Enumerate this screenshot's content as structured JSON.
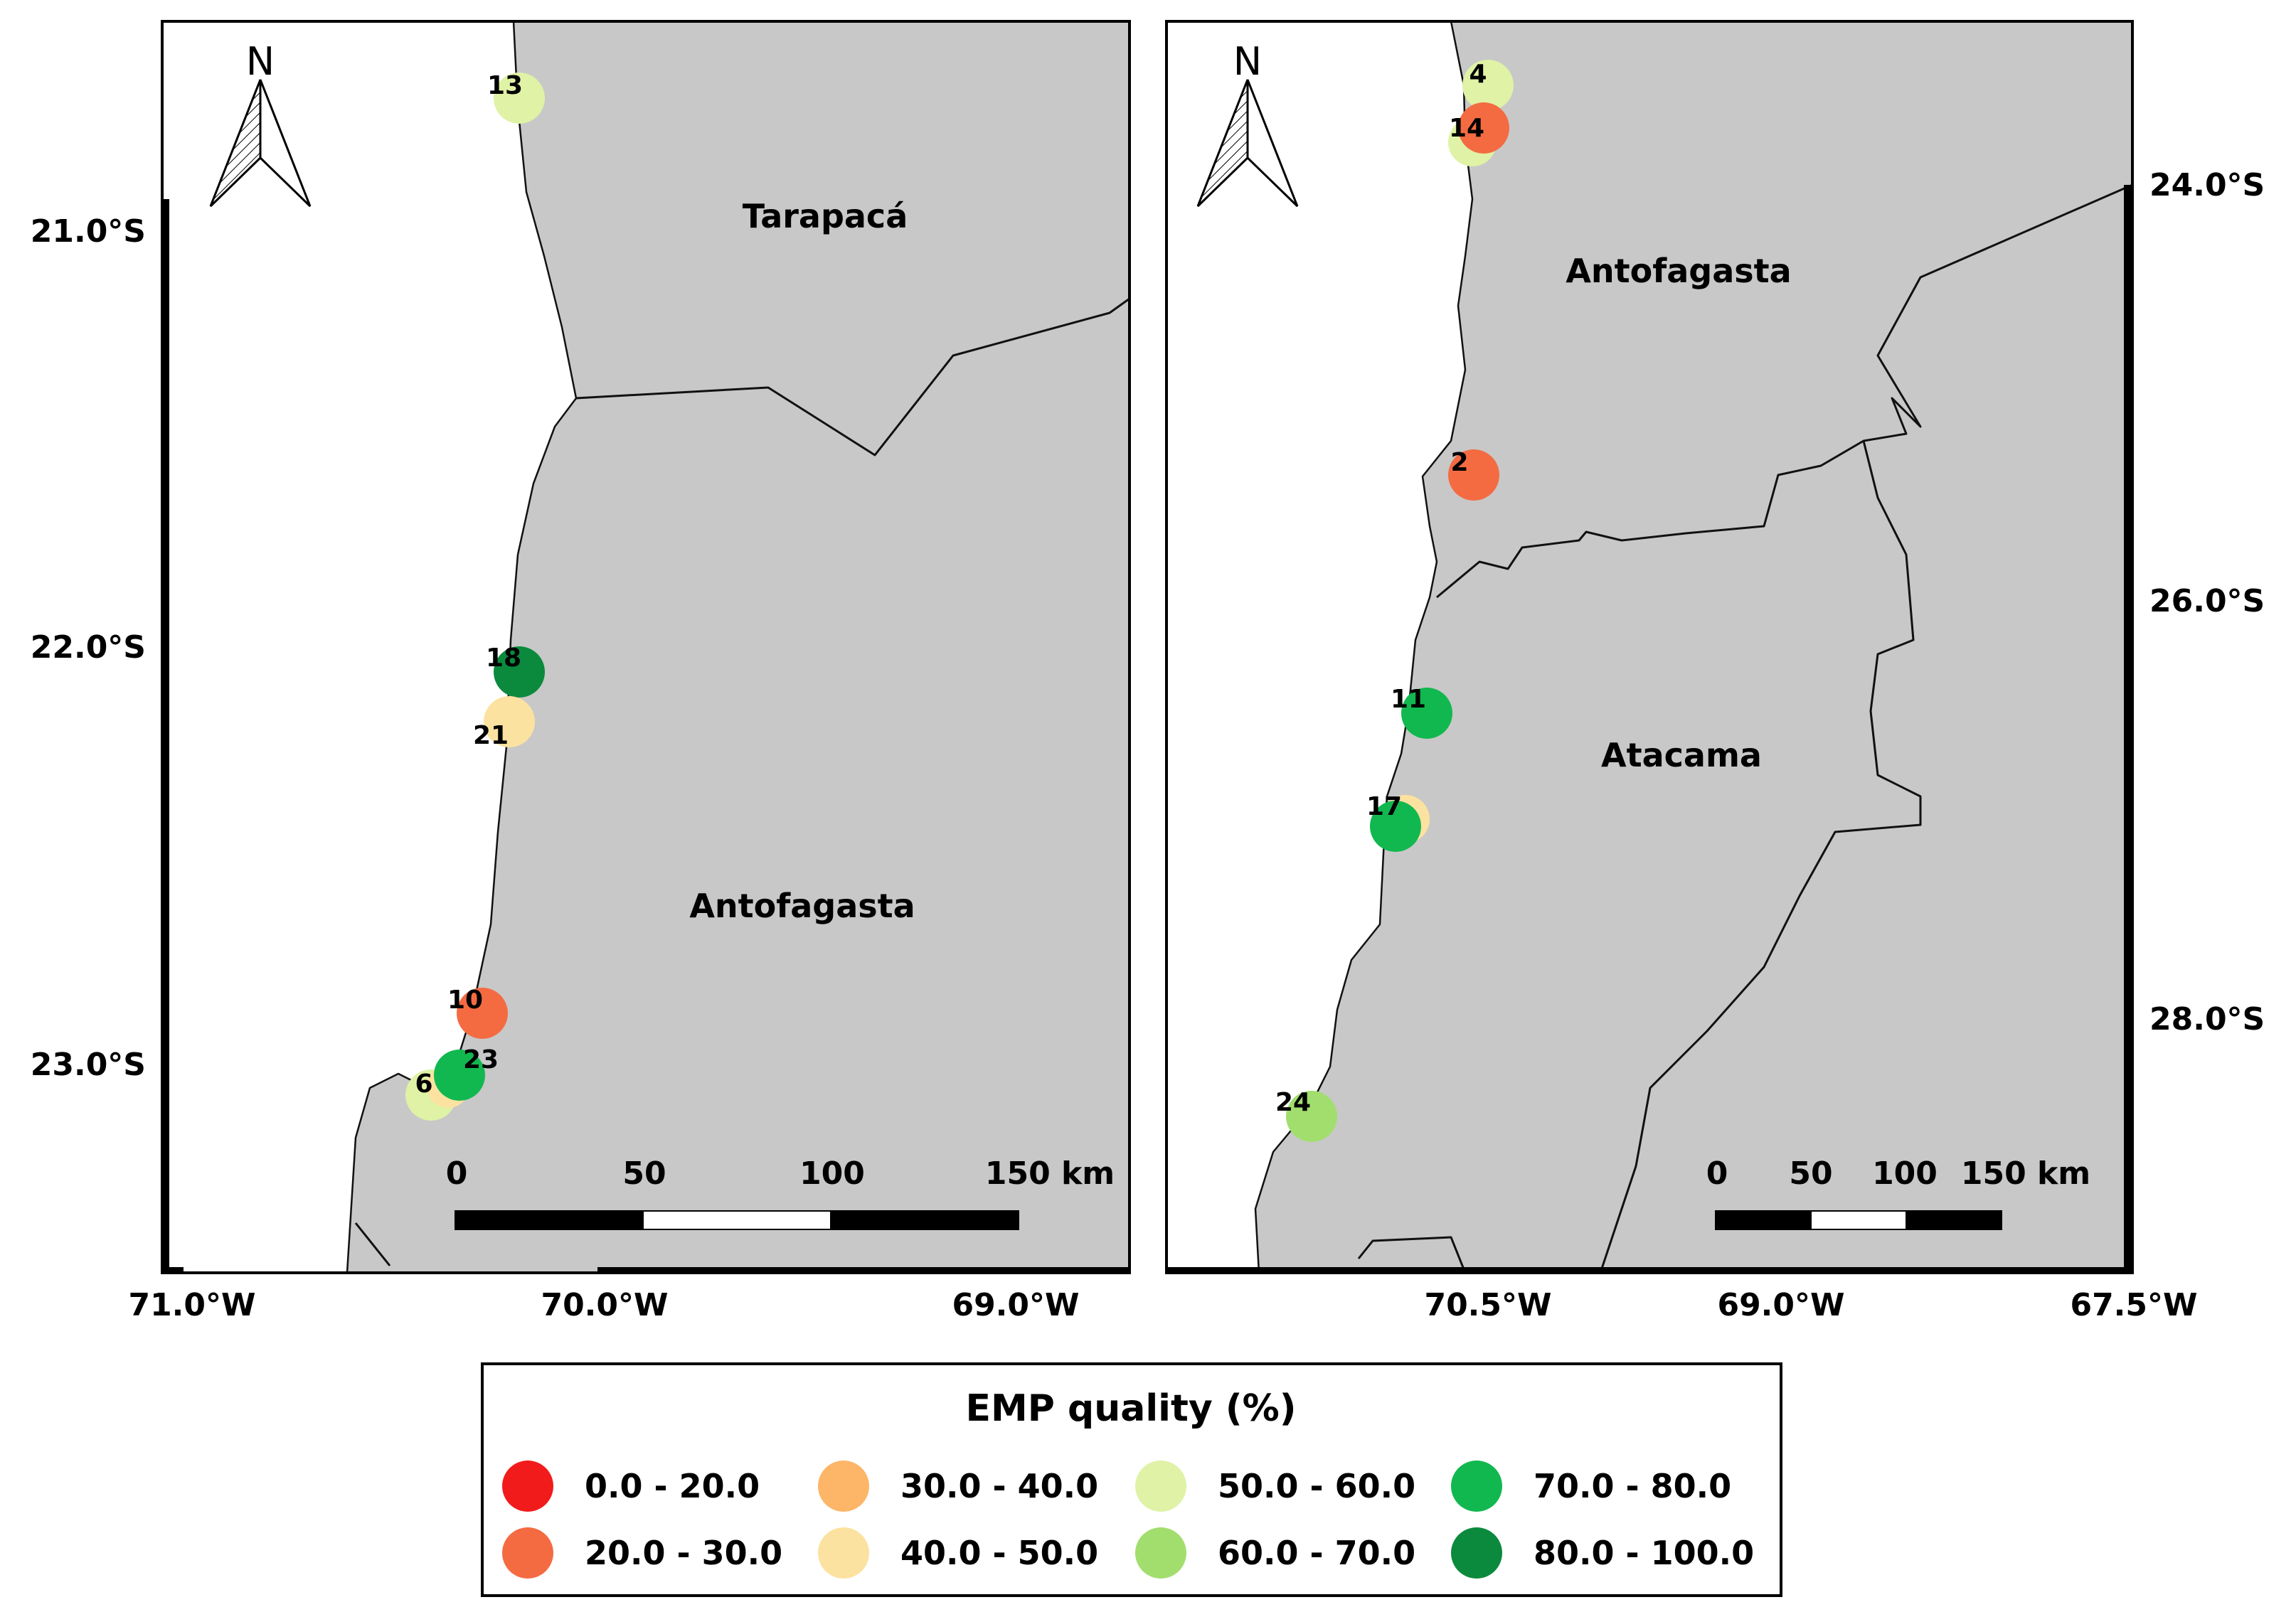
{
  "panels": [
    {
      "id": "left",
      "regions": [
        "Tarapacá",
        "Antofagasta"
      ],
      "lat_ticks": [
        "21.0°S",
        "22.0°S",
        "23.0°S"
      ],
      "lon_ticks": [
        "71.0°W",
        "70.0°W",
        "69.0°W"
      ],
      "scale_labels": [
        "0",
        "50",
        "100",
        "150 km"
      ],
      "north_label": "N",
      "sites": [
        {
          "id": "13",
          "class": "50.0 - 60.0"
        },
        {
          "id": "18",
          "class": "80.0 - 100.0"
        },
        {
          "id": "21",
          "class": "40.0 - 50.0"
        },
        {
          "id": "10",
          "class": "20.0 - 30.0"
        },
        {
          "id": "23",
          "class": "70.0 - 80.0"
        },
        {
          "id": "6",
          "class": "50.0 - 60.0"
        }
      ]
    },
    {
      "id": "right",
      "regions": [
        "Antofagasta",
        "Atacama"
      ],
      "lat_ticks": [
        "24.0°S",
        "26.0°S",
        "28.0°S"
      ],
      "lon_ticks": [
        "70.5°W",
        "69.0°W",
        "67.5°W"
      ],
      "scale_labels": [
        "0",
        "50",
        "100",
        "150 km"
      ],
      "north_label": "N",
      "sites": [
        {
          "id": "4",
          "class": "50.0 - 60.0"
        },
        {
          "id": "14",
          "class": "20.0 - 30.0"
        },
        {
          "id": "2",
          "class": "20.0 - 30.0"
        },
        {
          "id": "11",
          "class": "70.0 - 80.0"
        },
        {
          "id": "17",
          "class": "70.0 - 80.0"
        },
        {
          "id": "24",
          "class": "60.0 - 70.0"
        }
      ]
    }
  ],
  "legend": {
    "title": "EMP quality (%)",
    "items": [
      {
        "label": "0.0 - 20.0",
        "color": "#f21b1b"
      },
      {
        "label": "30.0 - 40.0",
        "color": "#fdb567"
      },
      {
        "label": "50.0 - 60.0",
        "color": "#dff2a6"
      },
      {
        "label": "70.0 - 80.0",
        "color": "#11b84f"
      },
      {
        "label": "20.0 - 30.0",
        "color": "#f46b42"
      },
      {
        "label": "40.0 - 50.0",
        "color": "#fce2a0"
      },
      {
        "label": "60.0 - 70.0",
        "color": "#a2de6e"
      },
      {
        "label": "80.0 - 100.0",
        "color": "#0b8a3d"
      }
    ]
  },
  "colors": {
    "land": "#c8c8c8",
    "sea": "#ffffff",
    "border": "#111111"
  }
}
